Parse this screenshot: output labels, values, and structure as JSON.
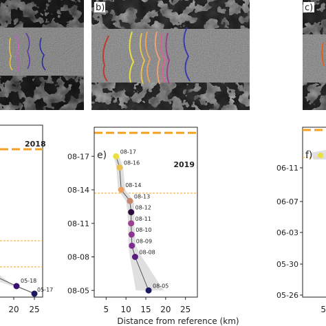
{
  "panels": {
    "b_label": "b)",
    "c_label": "c)",
    "e_label": "e)",
    "f_label": "f)",
    "d_year": "2018",
    "e_year": "2019",
    "d_xticks": [
      "20",
      "25"
    ],
    "f_yticks": [
      "06-11",
      "06-07",
      "06-03",
      "05-30",
      "05-26"
    ],
    "d_points": [
      {
        "label": "05-18"
      },
      {
        "label": "05-17"
      }
    ]
  },
  "colors": {
    "dark_purple": "#3b0f70",
    "purple": "#7b2e8f",
    "magenta": "#9c3f8f",
    "salmon": "#f0a070",
    "orange_tan": "#e8a060",
    "yellow": "#e8e040",
    "orange_dash": "#f3a01e",
    "navy": "#1a1a60",
    "red_line": "#c0392b",
    "band": "#d9d9d9"
  },
  "chart_data": {
    "type": "scatter",
    "title": "",
    "year_label": "2019",
    "xlabel": "Distance from reference (km)",
    "ylabel": "",
    "xlim": [
      2,
      28
    ],
    "x_ticks": [
      5,
      10,
      15,
      20,
      25
    ],
    "y_ticks": [
      "08-05",
      "08-08",
      "08-11",
      "08-14",
      "08-17"
    ],
    "y_tick_days": [
      0,
      3,
      6,
      9,
      12
    ],
    "ylim_days": [
      -0.6,
      14.6
    ],
    "thick_dash_day": 14.1,
    "thin_dash_day": 8.7,
    "points": [
      {
        "label": "08-17",
        "day": 12,
        "x": 7.5,
        "lo": 6.9,
        "hi": 8.3,
        "color": "#e8e040"
      },
      {
        "label": "08-16",
        "day": 11,
        "x": 8.4,
        "lo": 7.6,
        "hi": 9.3,
        "color": "#eac050"
      },
      {
        "label": "08-14",
        "day": 9,
        "x": 8.8,
        "lo": 8.0,
        "hi": 9.8,
        "color": "#e8a060"
      },
      {
        "label": "08-13",
        "day": 8,
        "x": 11.0,
        "lo": 10.0,
        "hi": 12.0,
        "color": "#c8866a"
      },
      {
        "label": "08-12",
        "day": 7,
        "x": 11.3,
        "lo": 10.4,
        "hi": 12.2,
        "color": "#2a0a3a"
      },
      {
        "label": "08-11",
        "day": 6,
        "x": 11.3,
        "lo": 10.5,
        "hi": 12.1,
        "color": "#9c3f8f"
      },
      {
        "label": "08-10",
        "day": 5,
        "x": 11.4,
        "lo": 10.6,
        "hi": 12.3,
        "color": "#8a3590"
      },
      {
        "label": "08-09",
        "day": 4,
        "x": 11.5,
        "lo": 10.6,
        "hi": 12.5,
        "color": "#7b2e8f"
      },
      {
        "label": "08-08",
        "day": 3,
        "x": 12.3,
        "lo": 11.0,
        "hi": 14.0,
        "color": "#5a1a80"
      },
      {
        "label": "08-05",
        "day": 0,
        "x": 15.7,
        "lo": 12.5,
        "hi": 19.5,
        "color": "#1a1a60"
      }
    ]
  }
}
